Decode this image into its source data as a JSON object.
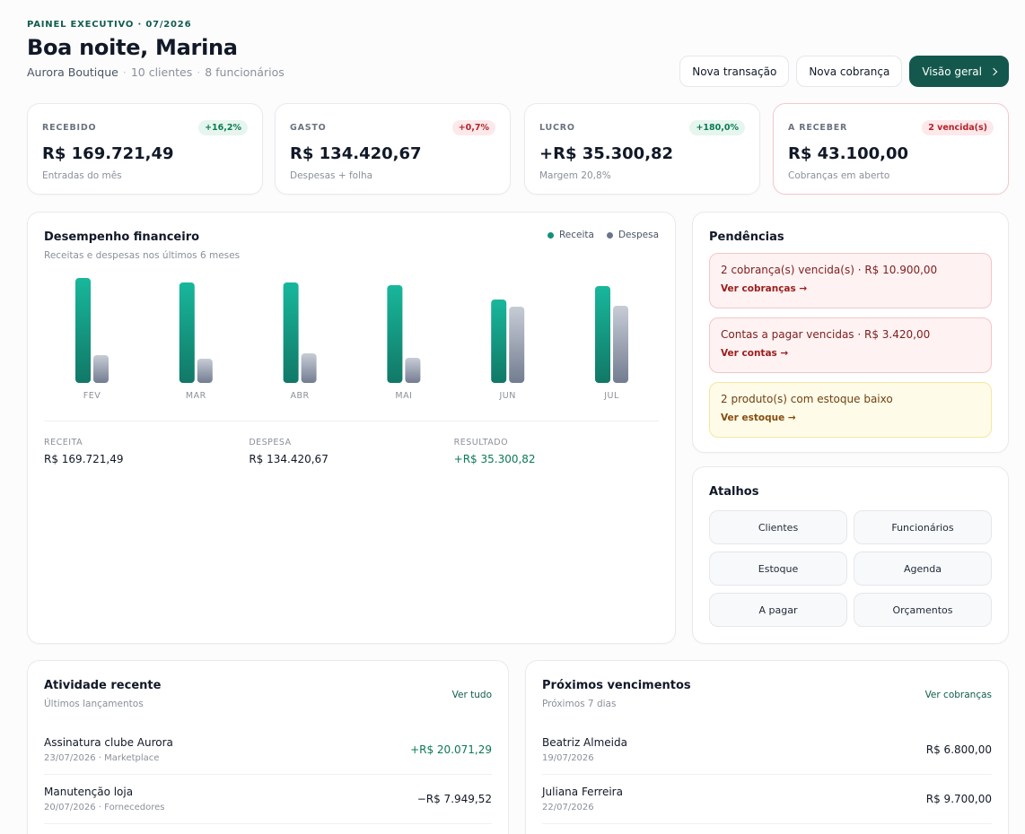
{
  "header": {
    "eyebrow": "PAINEL EXECUTIVO · 07/2026",
    "greeting": "Boa noite, Marina",
    "company": "Aurora Boutique",
    "clients": "10 clientes",
    "employees": "8 funcionários",
    "actions": {
      "new_transaction": "Nova transação",
      "new_charge": "Nova cobrança",
      "overview": "Visão geral"
    }
  },
  "stats": [
    {
      "label": "RECEBIDO",
      "badge": "+16,2%",
      "value": "R$ 169.721,49",
      "note": "Entradas do mês"
    },
    {
      "label": "GASTO",
      "badge": "+0,7%",
      "value": "R$ 134.420,67",
      "note": "Despesas + folha"
    },
    {
      "label": "LUCRO",
      "badge": "+180,0%",
      "value": "+R$ 35.300,82",
      "note": "Margem 20,8%"
    },
    {
      "label": "A RECEBER",
      "badge": "2 vencida(s)",
      "value": "R$ 43.100,00",
      "note": "Cobranças em aberto"
    }
  ],
  "colors": {
    "accent": "#14584d",
    "revenue": "#13a48c",
    "expense": "#8a93a4",
    "positive": "#0b7a55",
    "danger": "#b4232c"
  },
  "performance": {
    "title": "Desempenho financeiro",
    "subtitle": "Receitas e despesas nos últimos 6 meses",
    "totals": {
      "revenue_label": "RECEITA",
      "revenue_value": "R$ 169.721,49",
      "expense_label": "DESPESA",
      "expense_value": "R$ 134.420,67",
      "result_label": "RESULTADO",
      "result_value": "+R$ 35.300,82"
    }
  },
  "chart_data": {
    "type": "bar",
    "categories": [
      "FEV",
      "MAR",
      "ABR",
      "MAI",
      "JUN",
      "JUL"
    ],
    "series": [
      {
        "name": "Receita",
        "values": [
          117,
          112,
          112,
          109,
          93,
          108
        ]
      },
      {
        "name": "Despesa",
        "values": [
          31,
          27,
          33,
          28,
          85,
          86
        ]
      }
    ],
    "ylim": [
      0,
      117
    ],
    "legend": "top-right",
    "grid": false
  },
  "pending": {
    "title": "Pendências",
    "items": [
      {
        "text": "2 cobrança(s) vencida(s) · R$ 10.900,00",
        "link": "Ver cobranças →"
      },
      {
        "text": "Contas a pagar vencidas · R$ 3.420,00",
        "link": "Ver contas →"
      },
      {
        "text": "2 produto(s) com estoque baixo",
        "link": "Ver estoque →"
      }
    ]
  },
  "shortcuts": {
    "title": "Atalhos",
    "items": [
      "Clientes",
      "Funcionários",
      "Estoque",
      "Agenda",
      "A pagar",
      "Orçamentos"
    ]
  },
  "activity": {
    "title": "Atividade recente",
    "subtitle": "Últimos lançamentos",
    "link": "Ver tudo",
    "rows": [
      {
        "title": "Assinatura clube Aurora",
        "meta": "23/07/2026 · Marketplace",
        "amount": "+R$ 20.071,29"
      },
      {
        "title": "Manutenção loja",
        "meta": "20/07/2026 · Fornecedores",
        "amount": "−R$ 7.949,52"
      }
    ]
  },
  "due": {
    "title": "Próximos vencimentos",
    "subtitle": "Próximos 7 dias",
    "link": "Ver cobranças",
    "rows": [
      {
        "title": "Beatriz Almeida",
        "meta": "19/07/2026",
        "amount": "R$ 6.800,00"
      },
      {
        "title": "Juliana Ferreira",
        "meta": "22/07/2026",
        "amount": "R$ 9.700,00"
      }
    ]
  }
}
